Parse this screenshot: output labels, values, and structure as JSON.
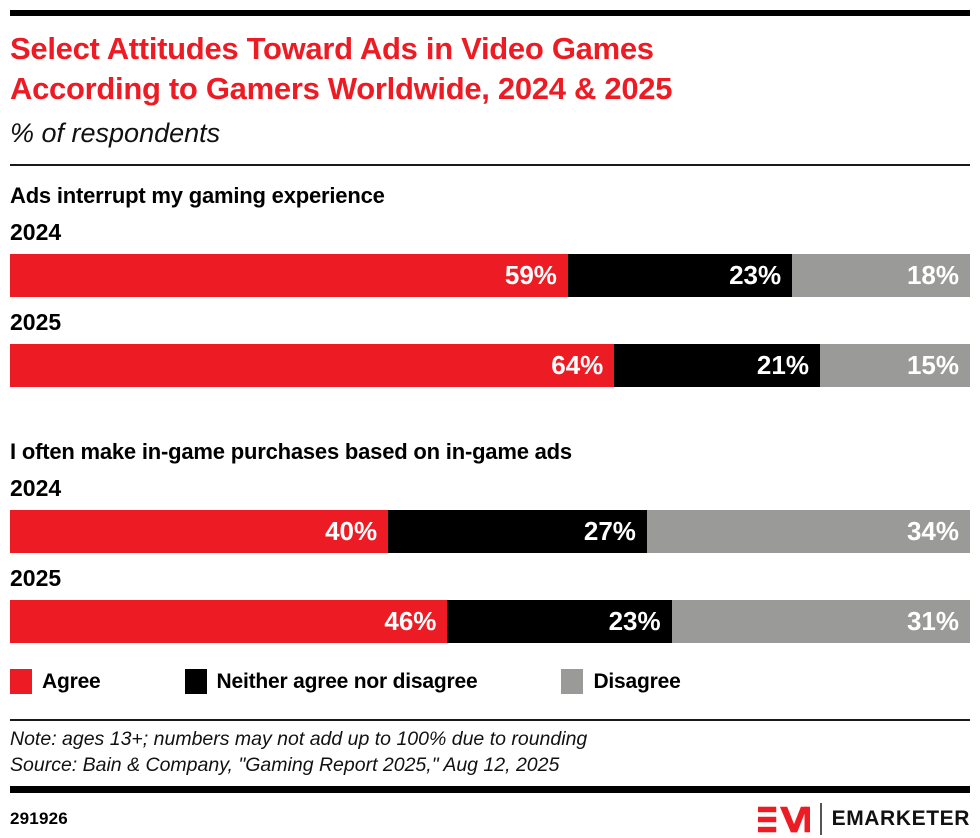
{
  "header": {
    "title_line1": "Select Attitudes Toward Ads in Video Games",
    "title_line2": "According to Gamers Worldwide, 2024 & 2025",
    "subtitle": "% of respondents"
  },
  "chart_data": {
    "type": "bar",
    "subtype": "horizontal-stacked",
    "title": "Select Attitudes Toward Ads in Video Games According to Gamers Worldwide, 2024 & 2025",
    "unit": "% of respondents",
    "xlim": [
      0,
      100
    ],
    "legend_position": "bottom",
    "series": [
      {
        "name": "Agree",
        "color": "#ED1C24"
      },
      {
        "name": "Neither agree nor disagree",
        "color": "#000000"
      },
      {
        "name": "Disagree",
        "color": "#9A9A99"
      }
    ],
    "groups": [
      {
        "question": "Ads interrupt my gaming experience",
        "rows": [
          {
            "year": "2024",
            "values": [
              59,
              23,
              18
            ]
          },
          {
            "year": "2025",
            "values": [
              64,
              21,
              15
            ]
          }
        ]
      },
      {
        "question": "I often make in-game purchases based on in-game ads",
        "rows": [
          {
            "year": "2024",
            "values": [
              40,
              27,
              34
            ]
          },
          {
            "year": "2025",
            "values": [
              46,
              23,
              31
            ]
          }
        ]
      }
    ]
  },
  "footer": {
    "note": "Note: ages 13+; numbers may not add up to 100% due to rounding",
    "source": "Source: Bain & Company, \"Gaming Report 2025,\" Aug 12, 2025",
    "chart_id": "291926",
    "brand": "EMARKETER"
  }
}
